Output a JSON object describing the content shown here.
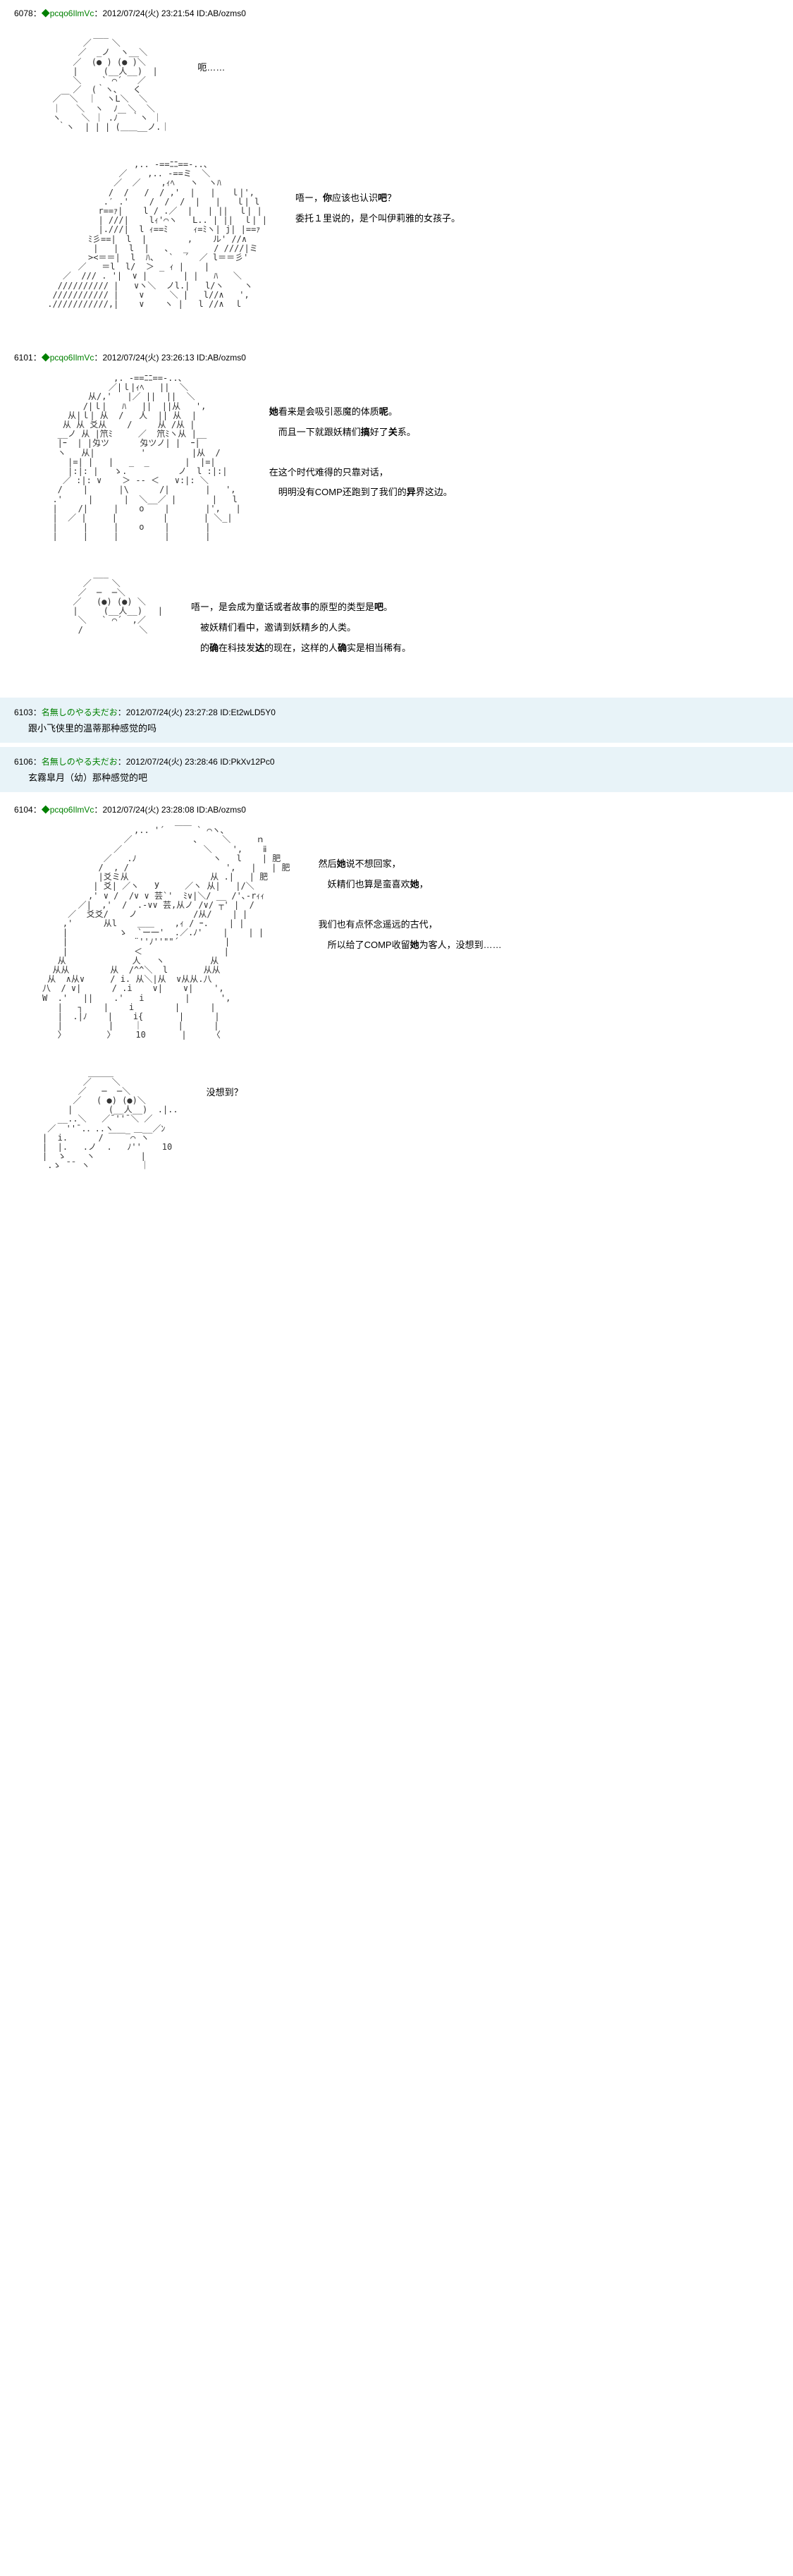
{
  "posts": [
    {
      "id": "6078",
      "trip": "◆pcqo6IlmVc",
      "date": "2012/07/24(火) 23:21:54",
      "uid": "ID:AB/ozms0",
      "blocks": [
        {
          "dialogue": [
            "呃……"
          ]
        },
        {
          "dialogue": [
            "唔ー，<b>你</b>应该也认识<b>吧</b>？",
            "委托１里说的，是个叫伊莉雅的女孩子。"
          ]
        }
      ]
    },
    {
      "id": "6101",
      "trip": "◆pcqo6IlmVc",
      "date": "2012/07/24(火) 23:26:13",
      "uid": "ID:AB/ozms0",
      "blocks": [
        {
          "dialogue": [
            "<b>她</b>看来是会吸引恶魔的体质<b>呢</b>。",
            "　而且一下就跟妖精们<b>搞</b>好了<b>关</b>系。",
            "",
            "在这个时代难得的只靠对话，",
            "　明明没有COMP还跑到了我们的<b>异</b>界这边。"
          ]
        },
        {
          "dialogue": [
            "唔ー，是会成为童话或者故事的原型的类型是<b>吧</b>。",
            "　被妖精们看中，邀请到妖精乡的人类。",
            "　的<b>确</b>在科技发<b>达</b>的现在，这样的人<b>确</b>实是相当稀有。"
          ]
        }
      ]
    }
  ],
  "replies": [
    {
      "id": "6103",
      "name": "名無しのやる夫だお",
      "date": "2012/07/24(火) 23:27:28",
      "uid": "ID:Et2wLD5Y0",
      "text": "跟小飞侠里的温蒂那<b>种</b>感觉的吗"
    },
    {
      "id": "6106",
      "name": "名無しのやる夫だお",
      "date": "2012/07/24(火) 23:28:46",
      "uid": "ID:PkXv12Pc0",
      "text": "玄霧皐月（幼）那<b>种</b>感觉的<b>吧</b>"
    }
  ],
  "post3": {
    "id": "6104",
    "trip": "◆pcqo6IlmVc",
    "date": "2012/07/24(火) 23:28:08",
    "uid": "ID:AB/ozms0",
    "blocks": [
      {
        "dialogue": [
          "然后<b>她</b>说不想回家，",
          "　妖精们也算是蛮喜欢<b>她</b>，",
          "",
          "我们也有点怀念遥远的古代，",
          "　所以给了COMP收留<b>她</b>为客人，没想到……"
        ]
      },
      {
        "dialogue": [
          "没想到？"
        ]
      }
    ]
  },
  "aa": {
    "face1": "          ___\n        ／    ＼\n       ／  _ノ  ヽ__＼\n      ／  (● ) (● )＼\n      |     (__人__)  |\n      ＼    ` ⌒´   ／\n      ／  (｀ヽ､   く\n  ／￣＼  ｜  ヽL＼  ＼\n  ｜   ＼  ヽ  ﾉ  ＼  ＼\n  ヽ    ＼ ｜ .ﾉ￣ ｀ヽ ｜\n   ｀ヽ  | | | (＿＿__ノ.｜",
    "face2": "                  ,.. -==ﾆﾆ==-..、\n               ／    ,.. -==ミ  ＼\n              ／  ／    ,ｨﾍ   ヽ  ヽﾊ\n             /  /   /  / ,'  |   |   ｌ|',\n            .′ .'    /  /  /  |   |   ｌ| l\n           r==ｧ|    l / .／  |   | ||  ｌ| |\n           | ///|    lｨ'⌒ヽ   L.. | ||  ｌ| |\n           |.///|  l ｨ==ﾐ     ｨ=ﾐヽ| j| |==ｧ\n         ﾐ彡==|  l  |        ,    ル' //∧\n          |   |  l  |   、  _     / ////|ミ\n         ><＝＝|  l  ﾊ、  `  ´  ／ l＝＝彡'\n       ／   ＝l  l/  ＞ _ ｨ |    |\n    ／  /// . '|  ∨ |       | |   ﾊ   ＼\n   ////////// |   ∨ヽ＼  ノl.|   l/ヽ    ヽ\n  /////////// |    ∨     ＼ |   l//∧   ',\n .///////////,|    ∨    ヽ |   l //∧  ｌ",
    "hair1": "              ,. -==ﾆﾆ==-..、\n             ／|ｌ|ｨﾍ   ||  ＼\n         从/,'   |／ ||  ||  ＼\n        /|ｌ|   ﾊ   ||  ||从   ',\n     从|ｌ| 从  /   人  || 从  |\n    从 从 爻从    /     从 /从 |\n   __ノ 从 |笊ﾐ     ／  笊ﾐヽ从 |__\n   |ｰ  | |匁ツ      匁ツノ| |  ｰ|\n   ヽ   从|         '         |从  /\n     |=| |   |   _  _       |  |=|\n     |:|: |   ゝ.          ノ  l :|:|\n    ／ :|: ∨    ＞ -- ＜   ∨:|: ＼\n   /    |      |\\      /|       |   ',\n  .'     |      |  ＼__／ |       |   l\n  |    /|     |    o    |       |',   |\n  |  ／ |     |         |       | ＼_|\n  |     |     |    o    |       |\n  |     |     |         |       |",
    "face3": "          ___\n        ／    ＼\n       ／  ─  ─＼\n      ／   (●) (●) ＼\n      |     (__人__)   |\n       ＼   ` ⌒´  ,／\n       /           ＼",
    "hair2": "                  ,.. '´  ￣￣ ` ⌒ヽ､\n                ／            、    ＼     ｎ\n              ／                ＼    ',    ⅱ\n            ／   .ﾉ               ヽ   l    | 肥\n           /  , /                   ',   |   | 肥\n           |爻ミ从                从 .|   | 肥\n          | 爻| ／ヽ   У     ／ヽ 从|   |/＼\n         ,' ∨ /  /∨ ∨ 芸`'  ﾐ∨|＼/ __ /'､-rｨｨ\n       ／|  ,'  /  .-∨∨ 芸,从ノ /∨/ ┬' |  /\n     ／  爻爻/    ノ           /从/    | |\n    ,'      从l    ＿＿    ,ｨ / ｰ.    | |\n    |          ゝ  `ー一'  .／.ﾉ'    |    | |\n    |             ¨''ﾉ''\"\"´         |\n    |             ＜                |\n   从             人   ヽ         从\n  从从        从  /^^＼  l       从从\n 从  ∧从∨     / i. 从＼|从  ∨从从.八\n八  / ∨|      / .i    ∨|    ∨|    ',\nW  .'   ||    .'   i        |      ',\n   |   ┐    |    i        |      |\n   |  .|ﾉ    |    i{       |      |\n   |         |    ｜       |      |\n   〉        〉    10       |     〈",
    "face4": "         ＿＿＿\n        ／    ＼\n       ／   ─  ─＼\n      ／   ( ●) (●)＼\n     |       (__人__)  .|..\n   __..＼   ／¯''¯＼ ／\n ／  ''¯.．..ヽ    ＿__／ﾝ\n|  i.      / ￣￣‾⌒ ヽ\n|  |.   .ノ  .   ﾉ''    10\n|  ゝ    ヽ         |\n .ゝ ¯¯ ヽ          ｜"
  }
}
